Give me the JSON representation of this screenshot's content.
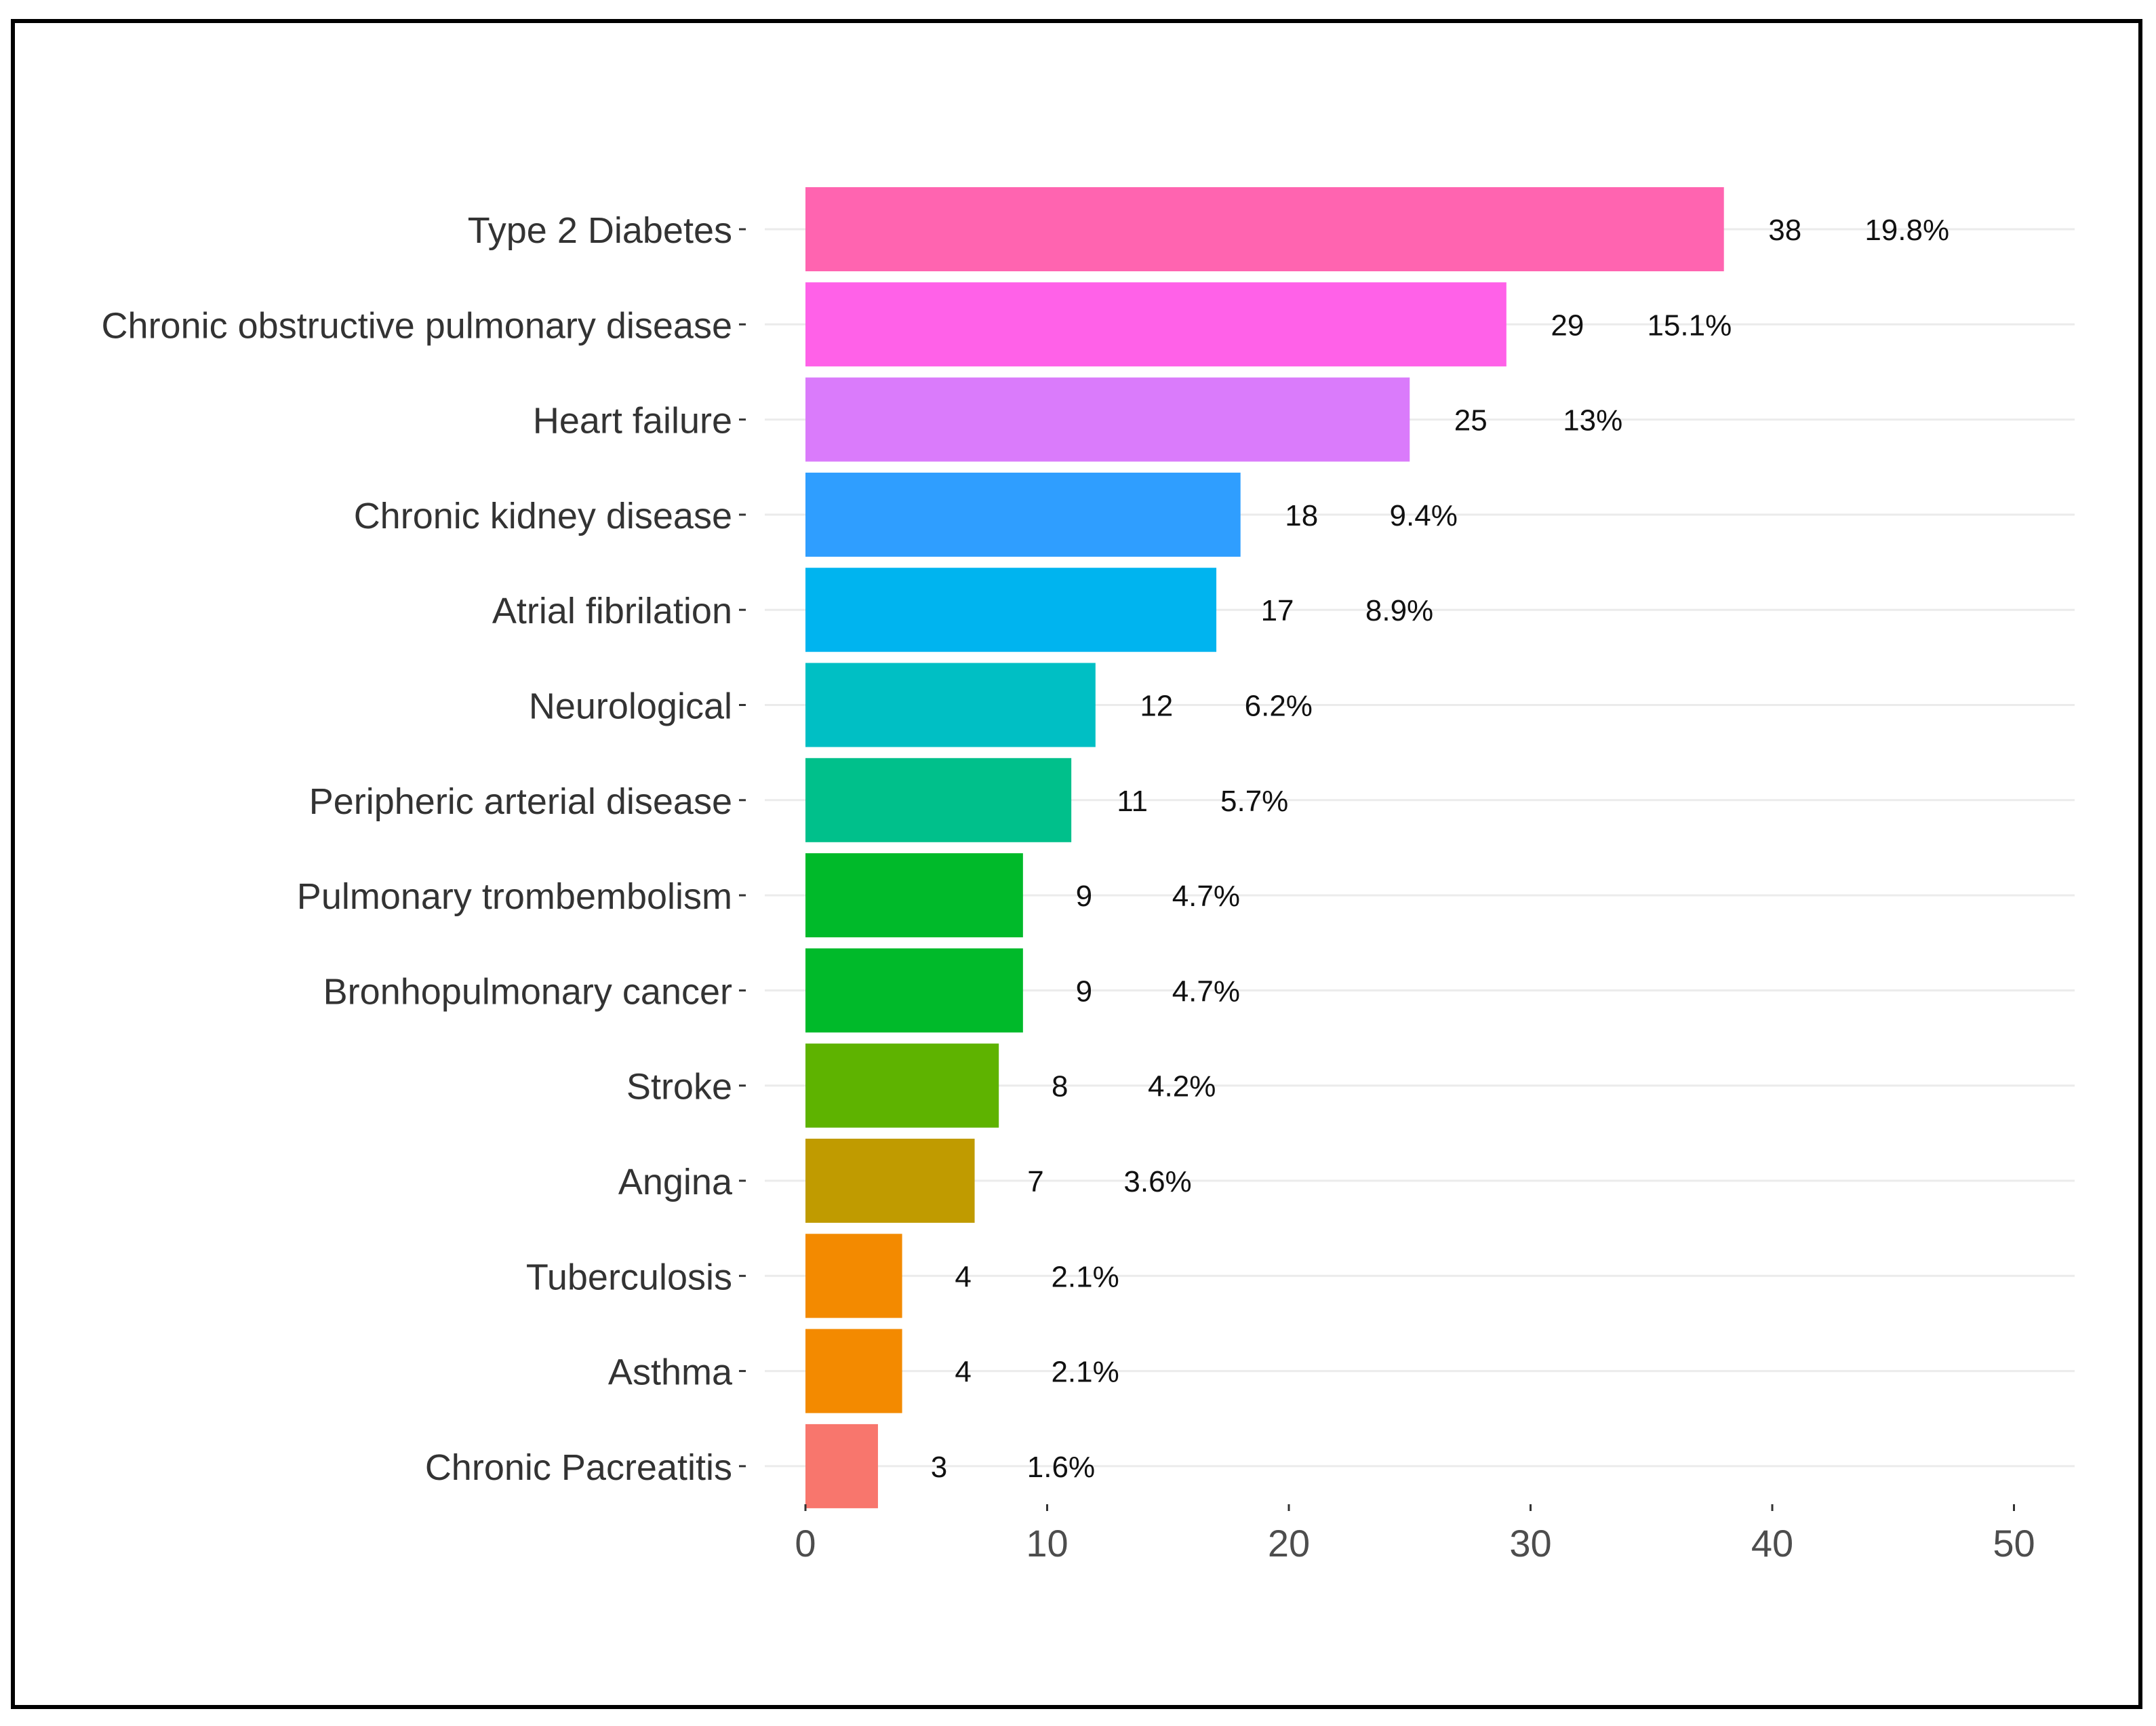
{
  "chart_data": {
    "type": "bar",
    "orientation": "horizontal",
    "categories": [
      "Type 2 Diabetes",
      "Chronic obstructive pulmonary disease",
      "Heart failure",
      "Chronic kidney disease",
      "Atrial fibrilation",
      "Neurological",
      "Peripheric arterial disease",
      "Pulmonary trombembolism",
      "Bronhopulmonary cancer",
      "Stroke",
      "Angina",
      "Tuberculosis",
      "Asthma",
      "Chronic Pacreatitis"
    ],
    "values": [
      38,
      29,
      25,
      18,
      17,
      12,
      11,
      9,
      9,
      8,
      7,
      4,
      4,
      3
    ],
    "value_labels": [
      "38",
      "29",
      "25",
      "18",
      "17",
      "12",
      "11",
      "9",
      "9",
      "8",
      "7",
      "4",
      "4",
      "3"
    ],
    "percent_labels": [
      "19.8%",
      "15.1%",
      "13%",
      "9.4%",
      "8.9%",
      "6.2%",
      "5.7%",
      "4.7%",
      "4.7%",
      "4.2%",
      "3.6%",
      "2.1%",
      "2.1%",
      "1.6%"
    ],
    "colors": [
      "#FF64B0",
      "#FF61E8",
      "#DA7BFB",
      "#2F9EFF",
      "#00B4EF",
      "#00BFC4",
      "#00C08B",
      "#00BA2A",
      "#00BA2A",
      "#5EB300",
      "#C09B00",
      "#F38A00",
      "#F38A00",
      "#F8766D"
    ],
    "xlim": [
      0,
      50
    ],
    "x_ticks": [
      0,
      10,
      20,
      30,
      40,
      50
    ],
    "x_tick_labels": [
      "0",
      "10",
      "20",
      "30",
      "40",
      "50"
    ],
    "grid": "horizontal-major",
    "legend": "none",
    "title": "",
    "xlabel": "",
    "ylabel": ""
  }
}
